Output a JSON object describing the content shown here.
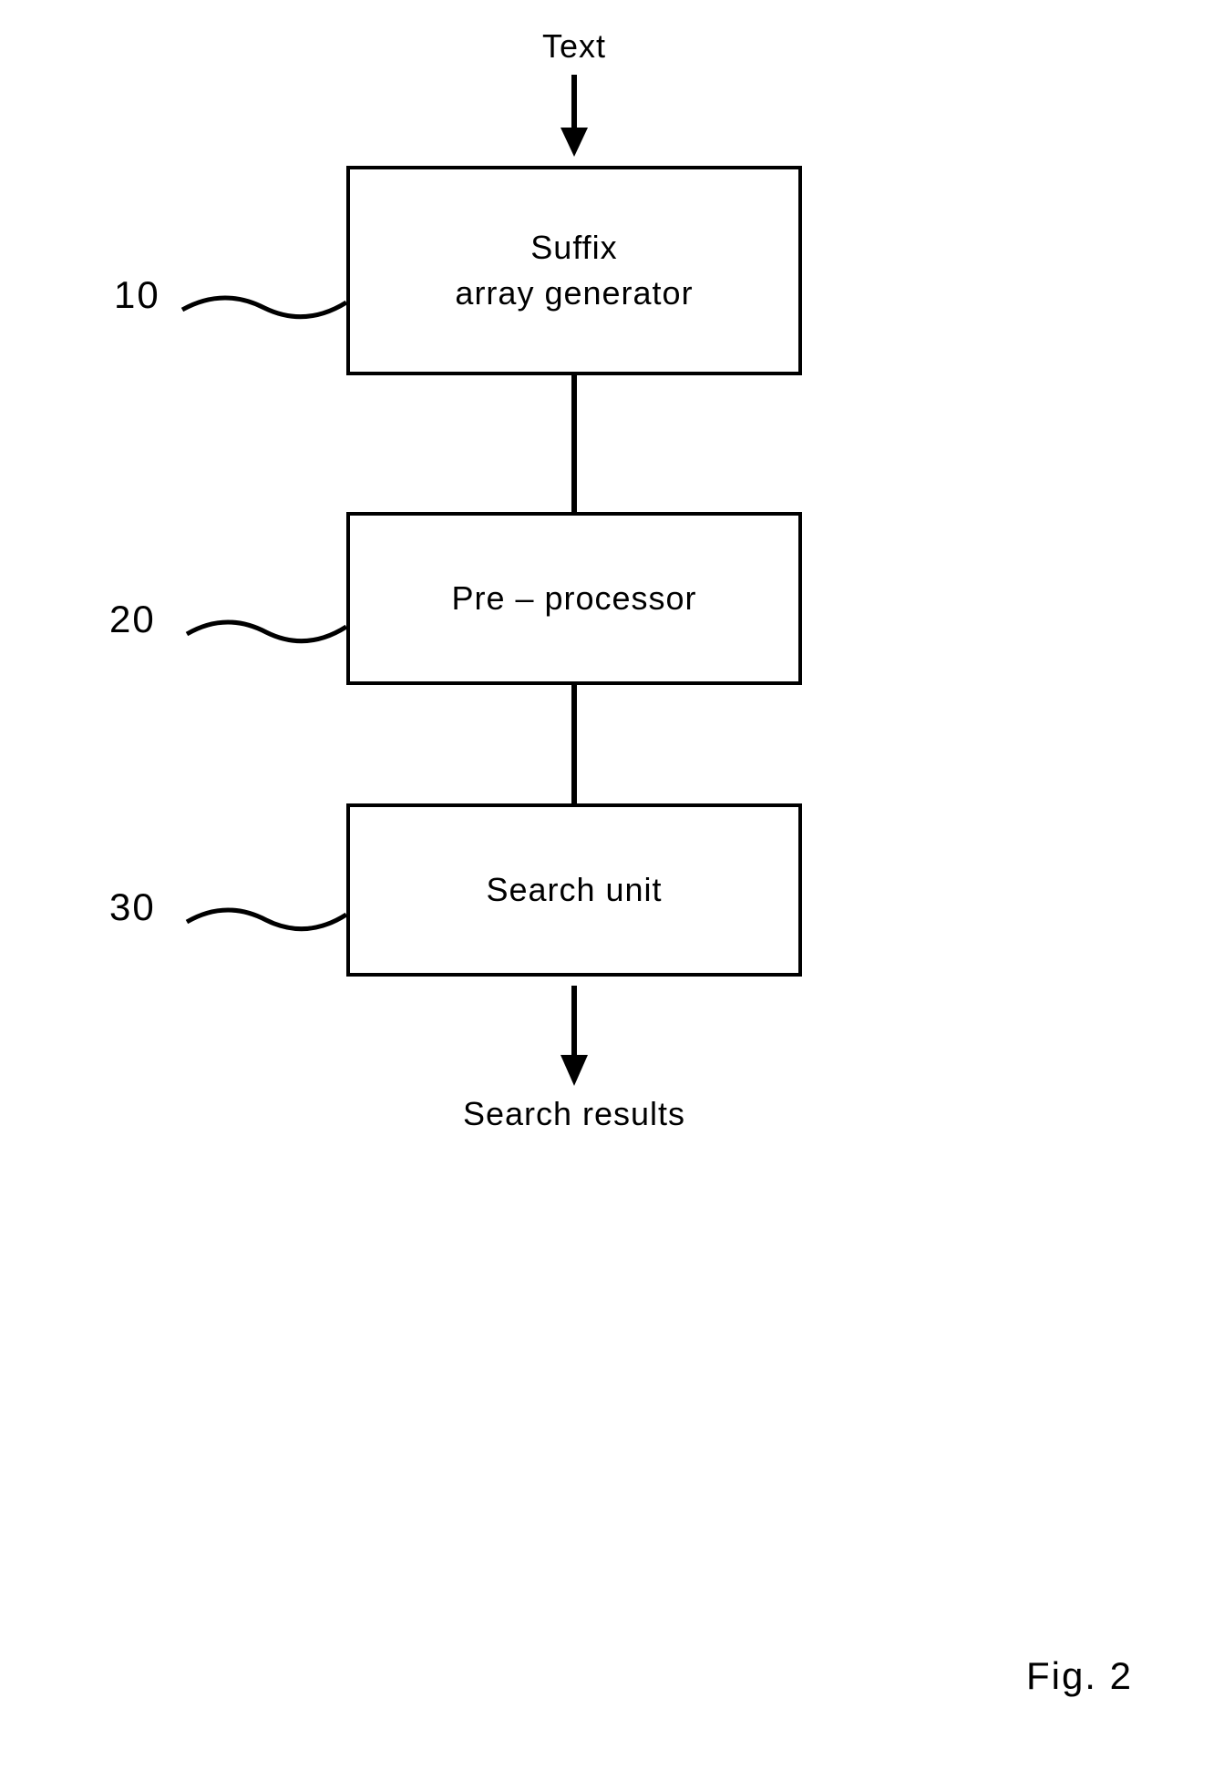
{
  "flowchart": {
    "type": "flowchart",
    "input_label": "Text",
    "output_label": "Search  results",
    "boxes": [
      {
        "ref": "10",
        "text": "Suffix\narray  generator",
        "height": "tall"
      },
      {
        "ref": "20",
        "text": "Pre – processor",
        "height": "short"
      },
      {
        "ref": "30",
        "text": "Search  unit",
        "height": "short"
      }
    ],
    "figure_label": "Fig.  2",
    "colors": {
      "stroke": "#000000",
      "background": "#ffffff",
      "text": "#000000"
    },
    "box_border_width": 4,
    "fonts": {
      "label_size": 36,
      "ref_size": 42,
      "figure_size": 42,
      "family": "Arial"
    },
    "arrow": {
      "shaft_width": 6,
      "head_width": 30,
      "head_height": 28
    },
    "connector_line_width": 6
  }
}
